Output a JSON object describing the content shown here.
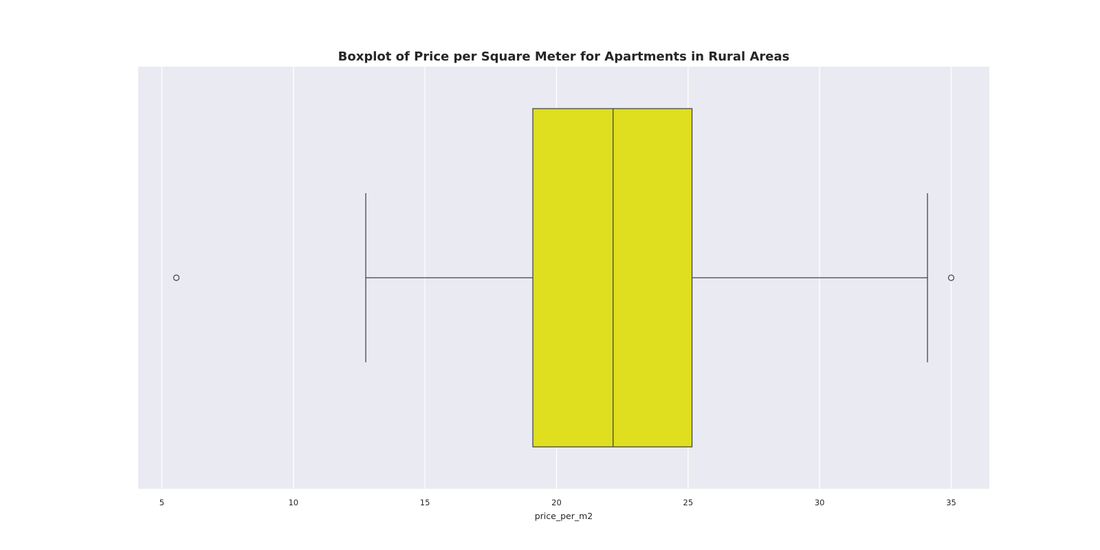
{
  "chart_data": {
    "type": "boxplot",
    "orientation": "horizontal",
    "title": "Boxplot of Price per Square Meter for Apartments in Rural Areas",
    "xlabel": "price_per_m2",
    "ylabel": "",
    "xlim": [
      4.1,
      36.45
    ],
    "xticks": [
      5,
      10,
      15,
      20,
      25,
      30,
      35
    ],
    "xtick_labels": [
      "5",
      "10",
      "15",
      "20",
      "25",
      "30",
      "35"
    ],
    "grid": true,
    "box": {
      "whisker_low": 12.75,
      "q1": 19.1,
      "median": 22.15,
      "q3": 25.15,
      "whisker_high": 34.1
    },
    "outliers": [
      5.55,
      35.0
    ],
    "colors": {
      "box_fill": "#dfdf1f",
      "line": "#404040",
      "plot_background": "#eaeaf2",
      "grid": "#ffffff"
    }
  }
}
